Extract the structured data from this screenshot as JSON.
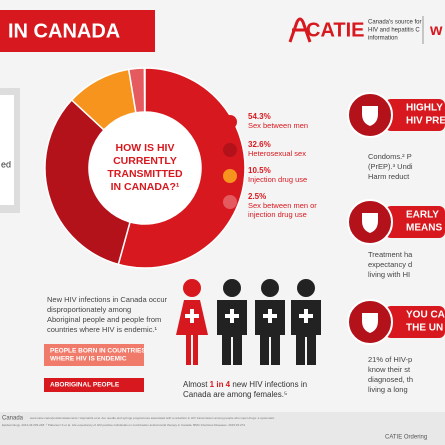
{
  "header": {
    "title": "IN CANADA",
    "logo": "CATIE",
    "logo_tagline": [
      "Canada's source for",
      "HIV and hepatitis C",
      "information"
    ],
    "cut_text": "w"
  },
  "left_cut_text": "ed",
  "chart_data": {
    "type": "pie",
    "title": [
      "HOW IS HIV",
      "CURRENTLY",
      "TRANSMITTED",
      "IN CANADA?¹"
    ],
    "categories": [
      [
        "Sex between men"
      ],
      [
        "Heterosexual sex"
      ],
      [
        "Injection drug use"
      ],
      [
        "Sex between men or",
        "injection drug use"
      ]
    ],
    "values": [
      54.3,
      32.6,
      10.5,
      2.5
    ],
    "value_labels": [
      "54.3%",
      "32.6%",
      "10.5%",
      "2.5%"
    ],
    "colors": [
      "#d7191f",
      "#b3121b",
      "#f7941d",
      "#e55a5e"
    ]
  },
  "paragraph": [
    "New HIV infections in Canada occur",
    "disproportionately among",
    "Aboriginal people and people from",
    "countries where HIV is endemic.¹"
  ],
  "boxes": [
    [
      "PEOPLE BORN IN COUNTRIES",
      "WHERE HIV IS ENDEMIC"
    ],
    [
      "ABORIGINAL PEOPLE"
    ]
  ],
  "females_note": [
    [
      "Almost ",
      "1 in 4",
      " new HIV infections in"
    ],
    [
      "Canada are among females.⁵"
    ]
  ],
  "panels": [
    {
      "title": [
        "HIGHLY",
        "HIV PRE"
      ],
      "text": [
        "Condoms.² P",
        "(PrEP).³ Undi",
        "Harm reduct"
      ]
    },
    {
      "title": [
        "EARLY",
        "MEANS"
      ],
      "text": [
        "Treatment ha",
        "expectancy d",
        "living with HI"
      ]
    },
    {
      "title": [
        "YOU CA",
        "THE UN"
      ],
      "text": [
        "21% of HIV-p",
        "know their st",
        "diagnosed, th",
        "living a long"
      ]
    }
  ],
  "footer": {
    "left": "Canada",
    "refs": [
      "www.catie.ca/en/positionstatements  ³ Aspinall E et al. Are needle and syringe programmes associated with a reduction in HIV transmission among people who inject drugs: a systematic",
      "Epidemiology. 2014;43:235-248.   ⁵ Patterson S et al. Life expectancy of HIV-positive individuals on combination antiretroviral therapy in Canada. BMC Infectious Diseases. 2015;15:274"
    ],
    "right": "CATIE Ordering"
  }
}
